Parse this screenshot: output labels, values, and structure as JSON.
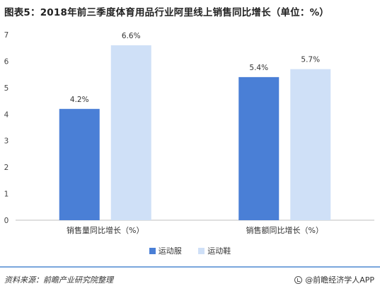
{
  "title": "图表5：2018年前三季度体育用品行业阿里线上销售同比增长（单位：%）",
  "source": "资料来源：前瞻产业研究院整理",
  "brand": "@前瞻经济学人APP",
  "colors": {
    "series1": "#4a7fd6",
    "series2": "#cfe0f7",
    "footer_rule": "#7aa6dc"
  },
  "chart_data": {
    "type": "bar",
    "categories": [
      "销售量同比增长（%）",
      "销售额同比增长（%）"
    ],
    "series": [
      {
        "name": "运动服",
        "values": [
          4.2,
          5.4
        ],
        "labels": [
          "4.2%",
          "5.4%"
        ]
      },
      {
        "name": "运动鞋",
        "values": [
          6.6,
          5.7
        ],
        "labels": [
          "6.6%",
          "5.7%"
        ]
      }
    ],
    "ylim": [
      0,
      7
    ],
    "yticks": [
      0,
      1,
      2,
      3,
      4,
      5,
      6,
      7
    ],
    "grid": false,
    "legend_position": "bottom"
  }
}
